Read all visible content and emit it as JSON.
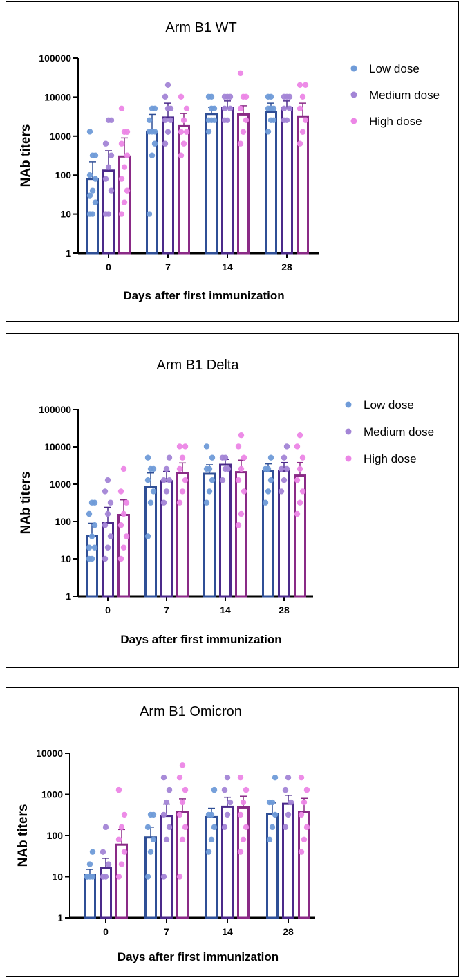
{
  "chart_data": [
    {
      "type": "bar",
      "title": "Arm B1 WT",
      "xlabel": "Days after first immunization",
      "ylabel": "NAb titers",
      "scale": "log",
      "ylim": [
        1,
        100000
      ],
      "yticks": [
        "1",
        "10",
        "100",
        "1000",
        "10000",
        "100000"
      ],
      "categories": [
        "0",
        "7",
        "14",
        "28"
      ],
      "legend_position": "right",
      "series": [
        {
          "name": "Low dose",
          "color": "#6f9bd8",
          "bar_color": "#2f4f96",
          "values": [
            80,
            1300,
            3700,
            4200
          ],
          "err": [
            220,
            3600,
            5500,
            7000
          ],
          "points": [
            [
              10,
              10,
              20,
              30,
              40,
              80,
              100,
              320,
              320,
              1300
            ],
            [
              10,
              320,
              640,
              1300,
              1300,
              1300,
              2560,
              5120,
              5120
            ],
            [
              1300,
              2560,
              2560,
              2560,
              5120,
              5120,
              10240,
              10240
            ],
            [
              1300,
              2560,
              2560,
              5120,
              5120,
              5120,
              10240,
              10240
            ]
          ]
        },
        {
          "name": "Medium dose",
          "color": "#a385d6",
          "bar_color": "#4b2a8a",
          "values": [
            130,
            3000,
            5200,
            5200
          ],
          "err": [
            420,
            7000,
            8000,
            8000
          ],
          "points": [
            [
              10,
              10,
              40,
              80,
              160,
              320,
              640,
              2560,
              2560
            ],
            [
              640,
              1280,
              2560,
              2560,
              5120,
              5120,
              10240,
              20480
            ],
            [
              2560,
              2560,
              5120,
              5120,
              10240,
              10240,
              10240
            ],
            [
              2560,
              2560,
              5120,
              5120,
              10240,
              10240,
              10240
            ]
          ]
        },
        {
          "name": "High dose",
          "color": "#ec86e6",
          "bar_color": "#8a2a86",
          "values": [
            300,
            1800,
            3600,
            3200
          ],
          "err": [
            900,
            3800,
            6000,
            7000
          ],
          "points": [
            [
              10,
              20,
              40,
              80,
              160,
              320,
              640,
              1280,
              1280,
              5120
            ],
            [
              320,
              640,
              1280,
              1280,
              2560,
              5120,
              10240
            ],
            [
              640,
              1280,
              2560,
              5120,
              10240,
              10240,
              40960
            ],
            [
              640,
              1280,
              2560,
              5120,
              10240,
              20480,
              20480
            ]
          ]
        }
      ]
    },
    {
      "type": "bar",
      "title": "Arm B1 Delta",
      "xlabel": "Days after first immunization",
      "ylabel": "NAb titers",
      "scale": "log",
      "ylim": [
        1,
        100000
      ],
      "yticks": [
        "1",
        "10",
        "100",
        "1000",
        "10000",
        "100000"
      ],
      "categories": [
        "0",
        "7",
        "14",
        "28"
      ],
      "legend_position": "right",
      "series": [
        {
          "name": "Low dose",
          "color": "#6f9bd8",
          "bar_color": "#2f4f96",
          "values": [
            40,
            850,
            1900,
            2200
          ],
          "err": [
            90,
            2000,
            3300,
            3500
          ],
          "points": [
            [
              10,
              10,
              20,
              20,
              40,
              80,
              160,
              320,
              320
            ],
            [
              40,
              320,
              640,
              1280,
              2560,
              2560,
              5120
            ],
            [
              320,
              640,
              1280,
              2560,
              2560,
              5120,
              10240
            ],
            [
              320,
              640,
              1280,
              2560,
              2560,
              5120
            ]
          ]
        },
        {
          "name": "Medium dose",
          "color": "#a385d6",
          "bar_color": "#4b2a8a",
          "values": [
            90,
            1200,
            3300,
            2300
          ],
          "err": [
            240,
            2200,
            4600,
            3800
          ],
          "points": [
            [
              10,
              20,
              40,
              80,
              160,
              320,
              640,
              1280
            ],
            [
              320,
              640,
              1280,
              1280,
              2560,
              5120
            ],
            [
              1280,
              2560,
              2560,
              5120,
              5120
            ],
            [
              640,
              1280,
              2560,
              2560,
              5120,
              10240
            ]
          ]
        },
        {
          "name": "High dose",
          "color": "#ec86e6",
          "bar_color": "#8a2a86",
          "values": [
            150,
            2000,
            2100,
            1700
          ],
          "err": [
            380,
            3700,
            4400,
            3800
          ],
          "points": [
            [
              10,
              20,
              40,
              80,
              160,
              320,
              640,
              2560
            ],
            [
              320,
              640,
              1280,
              2560,
              5120,
              10240,
              10240
            ],
            [
              80,
              160,
              640,
              1280,
              2560,
              5120,
              10240,
              20480
            ],
            [
              160,
              320,
              640,
              1280,
              2560,
              5120,
              10240,
              20480
            ]
          ]
        }
      ]
    },
    {
      "type": "bar",
      "title": "Arm B1 Omicron",
      "xlabel": "Days after first immunization",
      "ylabel": "NAb titers",
      "scale": "log",
      "ylim": [
        1,
        10000
      ],
      "yticks": [
        "1",
        "10",
        "100",
        "1000",
        "10000"
      ],
      "categories": [
        "0",
        "7",
        "14",
        "28"
      ],
      "legend_position": "right",
      "series": [
        {
          "name": "Low dose",
          "color": "#6f9bd8",
          "bar_color": "#2f4f96",
          "values": [
            11,
            90,
            280,
            330
          ],
          "err": [
            15,
            160,
            460,
            620
          ],
          "points": [
            [
              10,
              10,
              10,
              10,
              20,
              40
            ],
            [
              10,
              40,
              80,
              160,
              320,
              320
            ],
            [
              40,
              80,
              160,
              320,
              320,
              1280
            ],
            [
              80,
              160,
              320,
              640,
              640,
              2560
            ]
          ]
        },
        {
          "name": "Medium dose",
          "color": "#a385d6",
          "bar_color": "#4b2a8a",
          "values": [
            16,
            300,
            500,
            590
          ],
          "err": [
            28,
            580,
            850,
            950
          ],
          "points": [
            [
              10,
              10,
              20,
              40,
              160
            ],
            [
              10,
              80,
              160,
              320,
              640,
              1280,
              2560
            ],
            [
              160,
              320,
              640,
              1280,
              2560
            ],
            [
              160,
              320,
              640,
              1280,
              2560
            ]
          ]
        },
        {
          "name": "High dose",
          "color": "#ec86e6",
          "bar_color": "#8a2a86",
          "values": [
            60,
            370,
            480,
            370
          ],
          "err": [
            140,
            780,
            900,
            800
          ],
          "points": [
            [
              10,
              20,
              40,
              80,
              160,
              320,
              1280
            ],
            [
              10,
              80,
              160,
              320,
              640,
              1280,
              2560,
              5120
            ],
            [
              40,
              80,
              160,
              320,
              640,
              1280,
              2560
            ],
            [
              40,
              80,
              160,
              320,
              640,
              1280,
              2560
            ]
          ]
        }
      ]
    }
  ]
}
